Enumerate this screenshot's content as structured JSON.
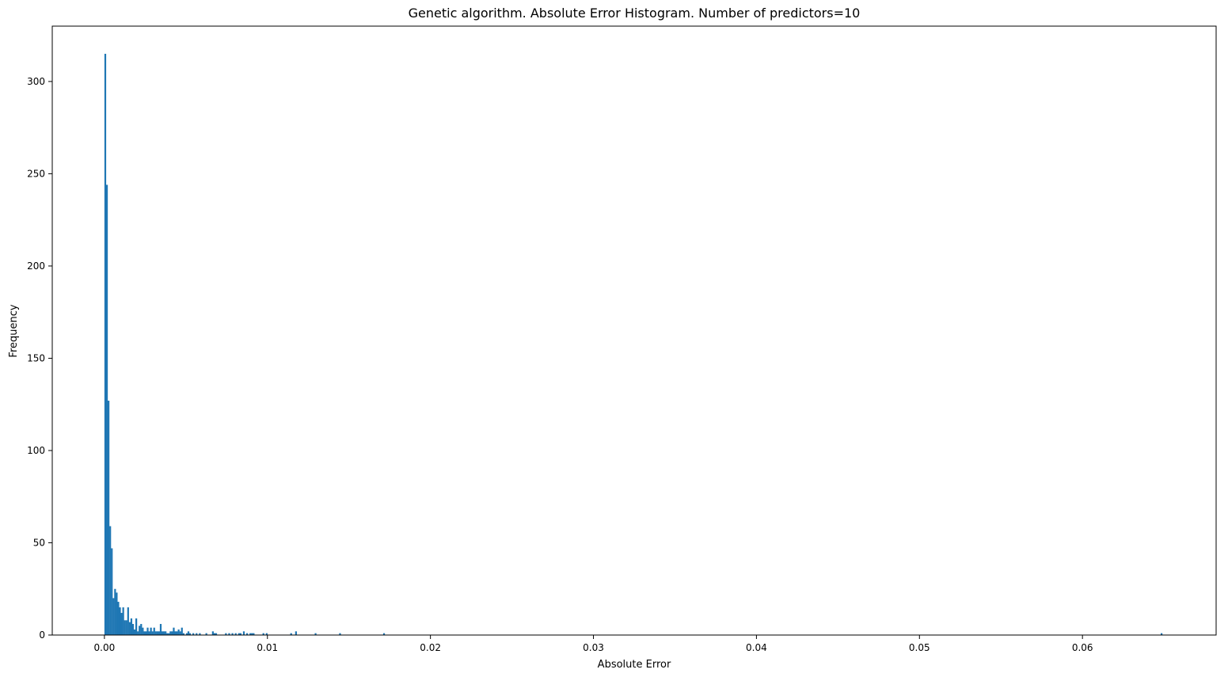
{
  "chart_data": {
    "type": "bar",
    "title": "Genetic algorithm. Absolute Error Histogram. Number of predictors=10",
    "xlabel": "Absolute Error",
    "ylabel": "Frequency",
    "xlim": [
      -0.0032,
      0.0682
    ],
    "ylim": [
      0,
      330
    ],
    "xticks": [
      0.0,
      0.01,
      0.02,
      0.03,
      0.04,
      0.05,
      0.06
    ],
    "xtick_labels": [
      "0.00",
      "0.01",
      "0.02",
      "0.03",
      "0.04",
      "0.05",
      "0.06"
    ],
    "yticks": [
      0,
      50,
      100,
      150,
      200,
      250,
      300
    ],
    "ytick_labels": [
      "0",
      "50",
      "100",
      "150",
      "200",
      "250",
      "300"
    ],
    "grid": false,
    "bar_color": "#1f77b4",
    "bin_width": 0.000108,
    "series": [
      {
        "values": [
          [
            0.0,
            315
          ],
          [
            0.0001,
            244
          ],
          [
            0.0002,
            127
          ],
          [
            0.0003,
            59
          ],
          [
            0.0004,
            47
          ],
          [
            0.0005,
            20
          ],
          [
            0.0006,
            25
          ],
          [
            0.0007,
            23
          ],
          [
            0.0008,
            18
          ],
          [
            0.0009,
            15
          ],
          [
            0.001,
            12
          ],
          [
            0.0011,
            15
          ],
          [
            0.0012,
            8
          ],
          [
            0.0013,
            8
          ],
          [
            0.0014,
            15
          ],
          [
            0.0015,
            7
          ],
          [
            0.0016,
            9
          ],
          [
            0.0017,
            6
          ],
          [
            0.0018,
            3
          ],
          [
            0.0019,
            9
          ],
          [
            0.002,
            2
          ],
          [
            0.0021,
            5
          ],
          [
            0.0022,
            6
          ],
          [
            0.0023,
            4
          ],
          [
            0.0024,
            2
          ],
          [
            0.0025,
            2
          ],
          [
            0.0026,
            4
          ],
          [
            0.0027,
            2
          ],
          [
            0.0028,
            4
          ],
          [
            0.0029,
            2
          ],
          [
            0.003,
            4
          ],
          [
            0.0031,
            2
          ],
          [
            0.0032,
            2
          ],
          [
            0.0033,
            2
          ],
          [
            0.0034,
            6
          ],
          [
            0.0035,
            2
          ],
          [
            0.0036,
            2
          ],
          [
            0.0037,
            2
          ],
          [
            0.0038,
            1
          ],
          [
            0.0039,
            1
          ],
          [
            0.004,
            2
          ],
          [
            0.0041,
            2
          ],
          [
            0.0042,
            4
          ],
          [
            0.0043,
            2
          ],
          [
            0.0044,
            2
          ],
          [
            0.0045,
            3
          ],
          [
            0.0046,
            2
          ],
          [
            0.0047,
            4
          ],
          [
            0.0048,
            1
          ],
          [
            0.005,
            1
          ],
          [
            0.0051,
            2
          ],
          [
            0.0052,
            1
          ],
          [
            0.0054,
            1
          ],
          [
            0.0056,
            1
          ],
          [
            0.0058,
            1
          ],
          [
            0.0062,
            1
          ],
          [
            0.0066,
            2
          ],
          [
            0.0067,
            1
          ],
          [
            0.0068,
            1
          ],
          [
            0.0074,
            1
          ],
          [
            0.0076,
            1
          ],
          [
            0.0078,
            1
          ],
          [
            0.008,
            1
          ],
          [
            0.0082,
            1
          ],
          [
            0.0083,
            1
          ],
          [
            0.0085,
            2
          ],
          [
            0.0087,
            1
          ],
          [
            0.0089,
            1
          ],
          [
            0.009,
            1
          ],
          [
            0.0091,
            1
          ],
          [
            0.0097,
            1
          ],
          [
            0.0099,
            1
          ],
          [
            0.0114,
            1
          ],
          [
            0.0117,
            2
          ],
          [
            0.0129,
            1
          ],
          [
            0.0144,
            1
          ],
          [
            0.0171,
            1
          ],
          [
            0.0648,
            1
          ]
        ]
      }
    ]
  }
}
